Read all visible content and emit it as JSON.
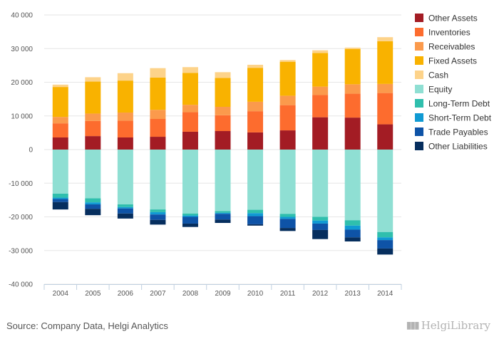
{
  "source_text": "Source: Company Data, Helgi Analytics",
  "logo_text": "HelgiLibrary",
  "chart_data": {
    "type": "bar",
    "stacked": true,
    "categories": [
      "2004",
      "2005",
      "2006",
      "2007",
      "2008",
      "2009",
      "2010",
      "2011",
      "2012",
      "2013",
      "2014"
    ],
    "ylim": [
      -40000,
      40000
    ],
    "yticks": [
      -40000,
      -30000,
      -20000,
      -10000,
      0,
      10000,
      20000,
      30000,
      40000
    ],
    "ytick_labels": [
      "-40 000",
      "-30 000",
      "-20 000",
      "-10 000",
      "0",
      "10 000",
      "20 000",
      "30 000",
      "40 000"
    ],
    "grid": true,
    "legend_position": "right",
    "series": [
      {
        "name": "Other Assets",
        "color": "#a31c24",
        "values": [
          3600,
          4000,
          3600,
          3800,
          5300,
          5500,
          5100,
          5700,
          9600,
          9500,
          7500
        ]
      },
      {
        "name": "Inventories",
        "color": "#fd6c2e",
        "values": [
          4200,
          4500,
          5000,
          5300,
          5800,
          4700,
          6300,
          7500,
          6600,
          7100,
          9300
        ]
      },
      {
        "name": "Receivables",
        "color": "#fb9a4c",
        "values": [
          1900,
          2200,
          2400,
          2700,
          2200,
          2500,
          2800,
          2800,
          2500,
          2800,
          2700
        ]
      },
      {
        "name": "Fixed Assets",
        "color": "#f9b200",
        "values": [
          8900,
          9500,
          9500,
          9600,
          9500,
          8600,
          10100,
          10100,
          10000,
          10500,
          12700
        ]
      },
      {
        "name": "Cash",
        "color": "#fdd38a",
        "values": [
          700,
          1300,
          2200,
          2800,
          1700,
          1700,
          900,
          500,
          800,
          400,
          1200
        ]
      },
      {
        "name": "Equity",
        "color": "#8fdfd3",
        "values": [
          -13100,
          -14500,
          -16300,
          -17800,
          -19000,
          -18300,
          -17900,
          -19100,
          -20000,
          -21000,
          -24500
        ]
      },
      {
        "name": "Long-Term Debt",
        "color": "#2fbfad",
        "values": [
          -1200,
          -1200,
          -800,
          -800,
          -600,
          -500,
          -1000,
          -900,
          -1100,
          -1600,
          -1600
        ]
      },
      {
        "name": "Short-Term Debt",
        "color": "#109ad3",
        "values": [
          -400,
          -600,
          -400,
          -700,
          -400,
          -300,
          -900,
          -600,
          -900,
          -1200,
          -800
        ]
      },
      {
        "name": "Trade Payables",
        "color": "#0e53a7",
        "values": [
          -900,
          -1300,
          -1500,
          -1600,
          -2000,
          -1700,
          -2400,
          -2700,
          -1900,
          -2300,
          -2500
        ]
      },
      {
        "name": "Other Liabilities",
        "color": "#062e5e",
        "values": [
          -2200,
          -1900,
          -1500,
          -1400,
          -1000,
          -1000,
          -400,
          -900,
          -2700,
          -1200,
          -1800
        ]
      }
    ]
  }
}
